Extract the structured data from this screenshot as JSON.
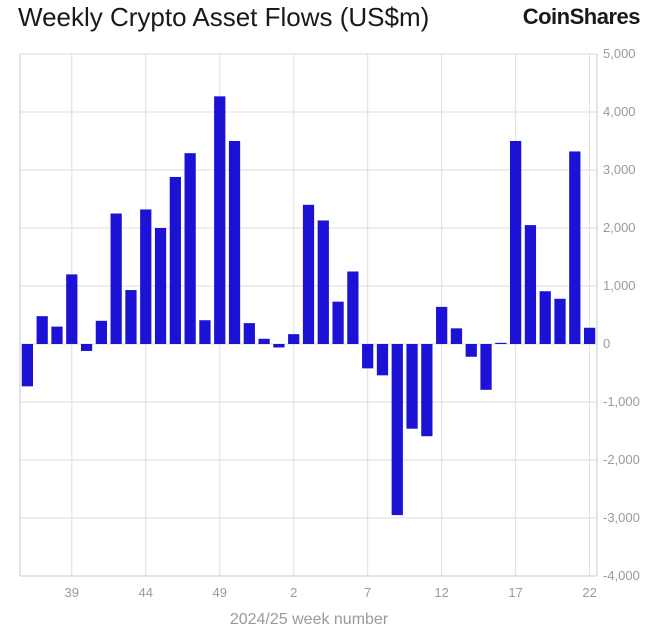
{
  "chart_data": {
    "type": "bar",
    "title": "Weekly Crypto Asset Flows (US$m)",
    "brand": "CoinShares",
    "xlabel": "2024/25 week number",
    "ylabel": "",
    "ylim": [
      -4000,
      5000
    ],
    "yticks": [
      5000,
      4000,
      3000,
      2000,
      1000,
      0,
      -1000,
      -2000,
      -3000,
      -4000
    ],
    "ytick_labels": [
      "5,000",
      "4,000",
      "3,000",
      "2,000",
      "1,000",
      "0",
      "-1,000",
      "-2,000",
      "-3,000",
      "-4,000"
    ],
    "x_tick_labels": [
      {
        "week": 39,
        "label": "39"
      },
      {
        "week": 44,
        "label": "44"
      },
      {
        "week": 49,
        "label": "49"
      },
      {
        "week": 2,
        "label": "2"
      },
      {
        "week": 7,
        "label": "7"
      },
      {
        "week": 12,
        "label": "12"
      },
      {
        "week": 17,
        "label": "17"
      },
      {
        "week": 22,
        "label": "22"
      }
    ],
    "grid": true,
    "bar_color": "#1c12d6",
    "categories": [
      "36",
      "37",
      "38",
      "39",
      "40",
      "41",
      "42",
      "43",
      "44",
      "45",
      "46",
      "47",
      "48",
      "49",
      "50",
      "51",
      "52",
      "1",
      "2",
      "3",
      "4",
      "5",
      "6",
      "7",
      "8",
      "9",
      "10",
      "11",
      "12",
      "13",
      "14",
      "15",
      "16",
      "17",
      "18",
      "19",
      "20",
      "21",
      "22"
    ],
    "values": [
      -730,
      480,
      300,
      1200,
      -120,
      400,
      2250,
      930,
      2320,
      2000,
      2880,
      3290,
      410,
      4270,
      3500,
      360,
      90,
      -60,
      170,
      2400,
      2130,
      730,
      1250,
      -420,
      -540,
      -2950,
      -1460,
      -1590,
      640,
      270,
      -220,
      -790,
      20,
      3500,
      2050,
      910,
      780,
      3320,
      280
    ]
  }
}
